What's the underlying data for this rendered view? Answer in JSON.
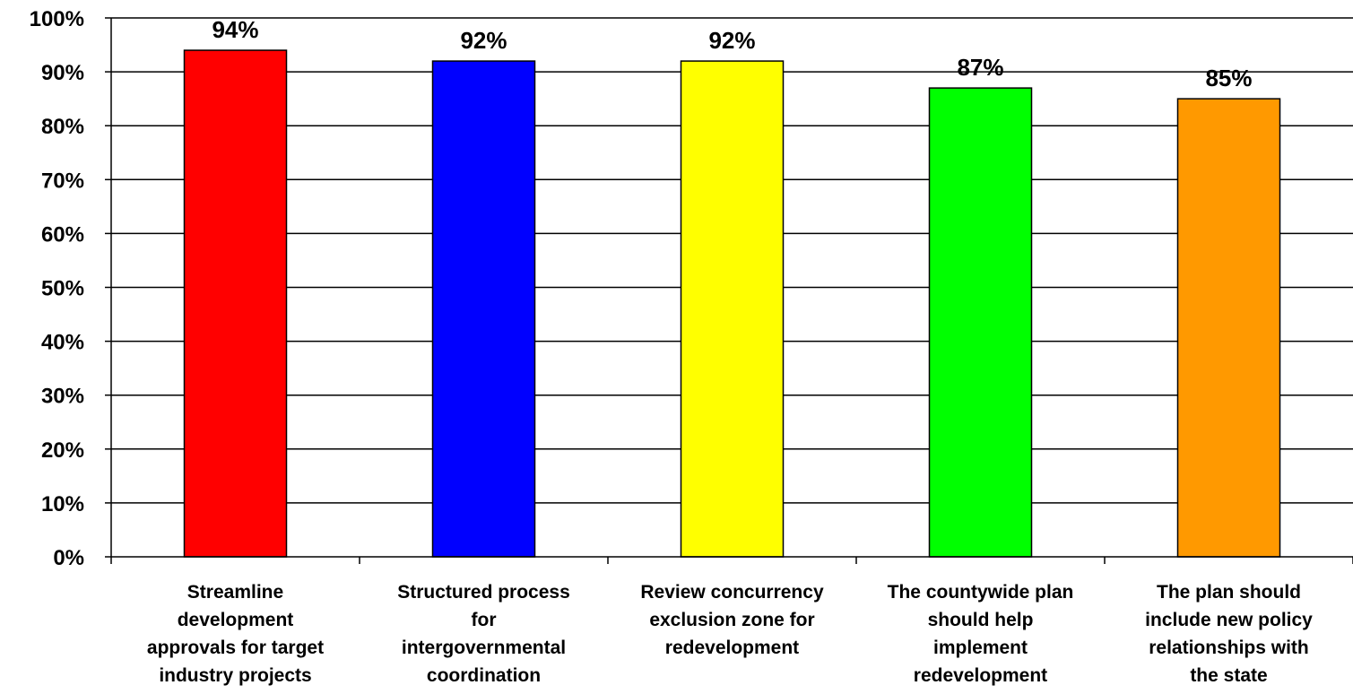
{
  "chart_data": {
    "type": "bar",
    "categories": [
      [
        "Streamline",
        "development",
        "approvals for target",
        "industry projects"
      ],
      [
        "Structured process",
        "for",
        "intergovernmental",
        "coordination"
      ],
      [
        "Review concurrency",
        "exclusion zone for",
        "redevelopment"
      ],
      [
        "The countywide plan",
        "should help",
        "implement",
        "redevelopment"
      ],
      [
        "The plan should",
        "include new policy",
        "relationships with",
        "the state"
      ]
    ],
    "values": [
      94,
      92,
      92,
      87,
      85
    ],
    "data_labels": [
      "94%",
      "92%",
      "92%",
      "87%",
      "85%"
    ],
    "colors": [
      "#ff0000",
      "#0000ff",
      "#ffff00",
      "#00ff00",
      "#ff9900"
    ],
    "ylim": [
      0,
      100
    ],
    "yticks": [
      0,
      10,
      20,
      30,
      40,
      50,
      60,
      70,
      80,
      90,
      100
    ],
    "ytick_labels": [
      "0%",
      "10%",
      "20%",
      "30%",
      "40%",
      "50%",
      "60%",
      "70%",
      "80%",
      "90%",
      "100%"
    ],
    "grid": true,
    "legend": "none"
  }
}
